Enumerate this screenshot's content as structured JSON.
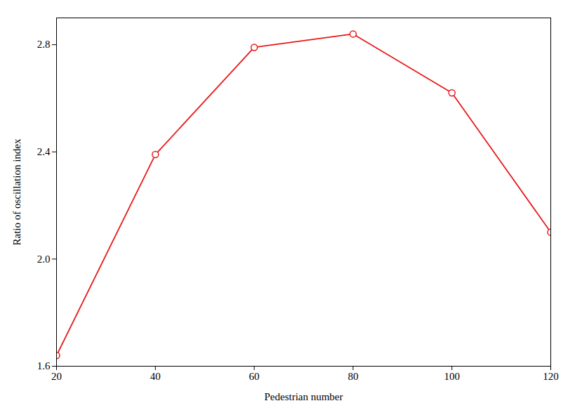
{
  "chart_data": {
    "type": "line",
    "x": [
      20,
      40,
      60,
      80,
      100,
      120
    ],
    "values": [
      1.64,
      2.39,
      2.79,
      2.84,
      2.62,
      2.1
    ],
    "color": "#e8191a",
    "marker": "circle",
    "xlabel": "Pedestrian number",
    "ylabel": "Ratio of oscillation index",
    "xlim": [
      20,
      120
    ],
    "ylim": [
      1.6,
      2.9
    ],
    "xticks": [
      20,
      40,
      60,
      80,
      100,
      120
    ],
    "yticks": [
      1.6,
      {
        "value": 2.0,
        "label": "2.0"
      },
      2.4,
      2.8
    ],
    "grid": false
  }
}
